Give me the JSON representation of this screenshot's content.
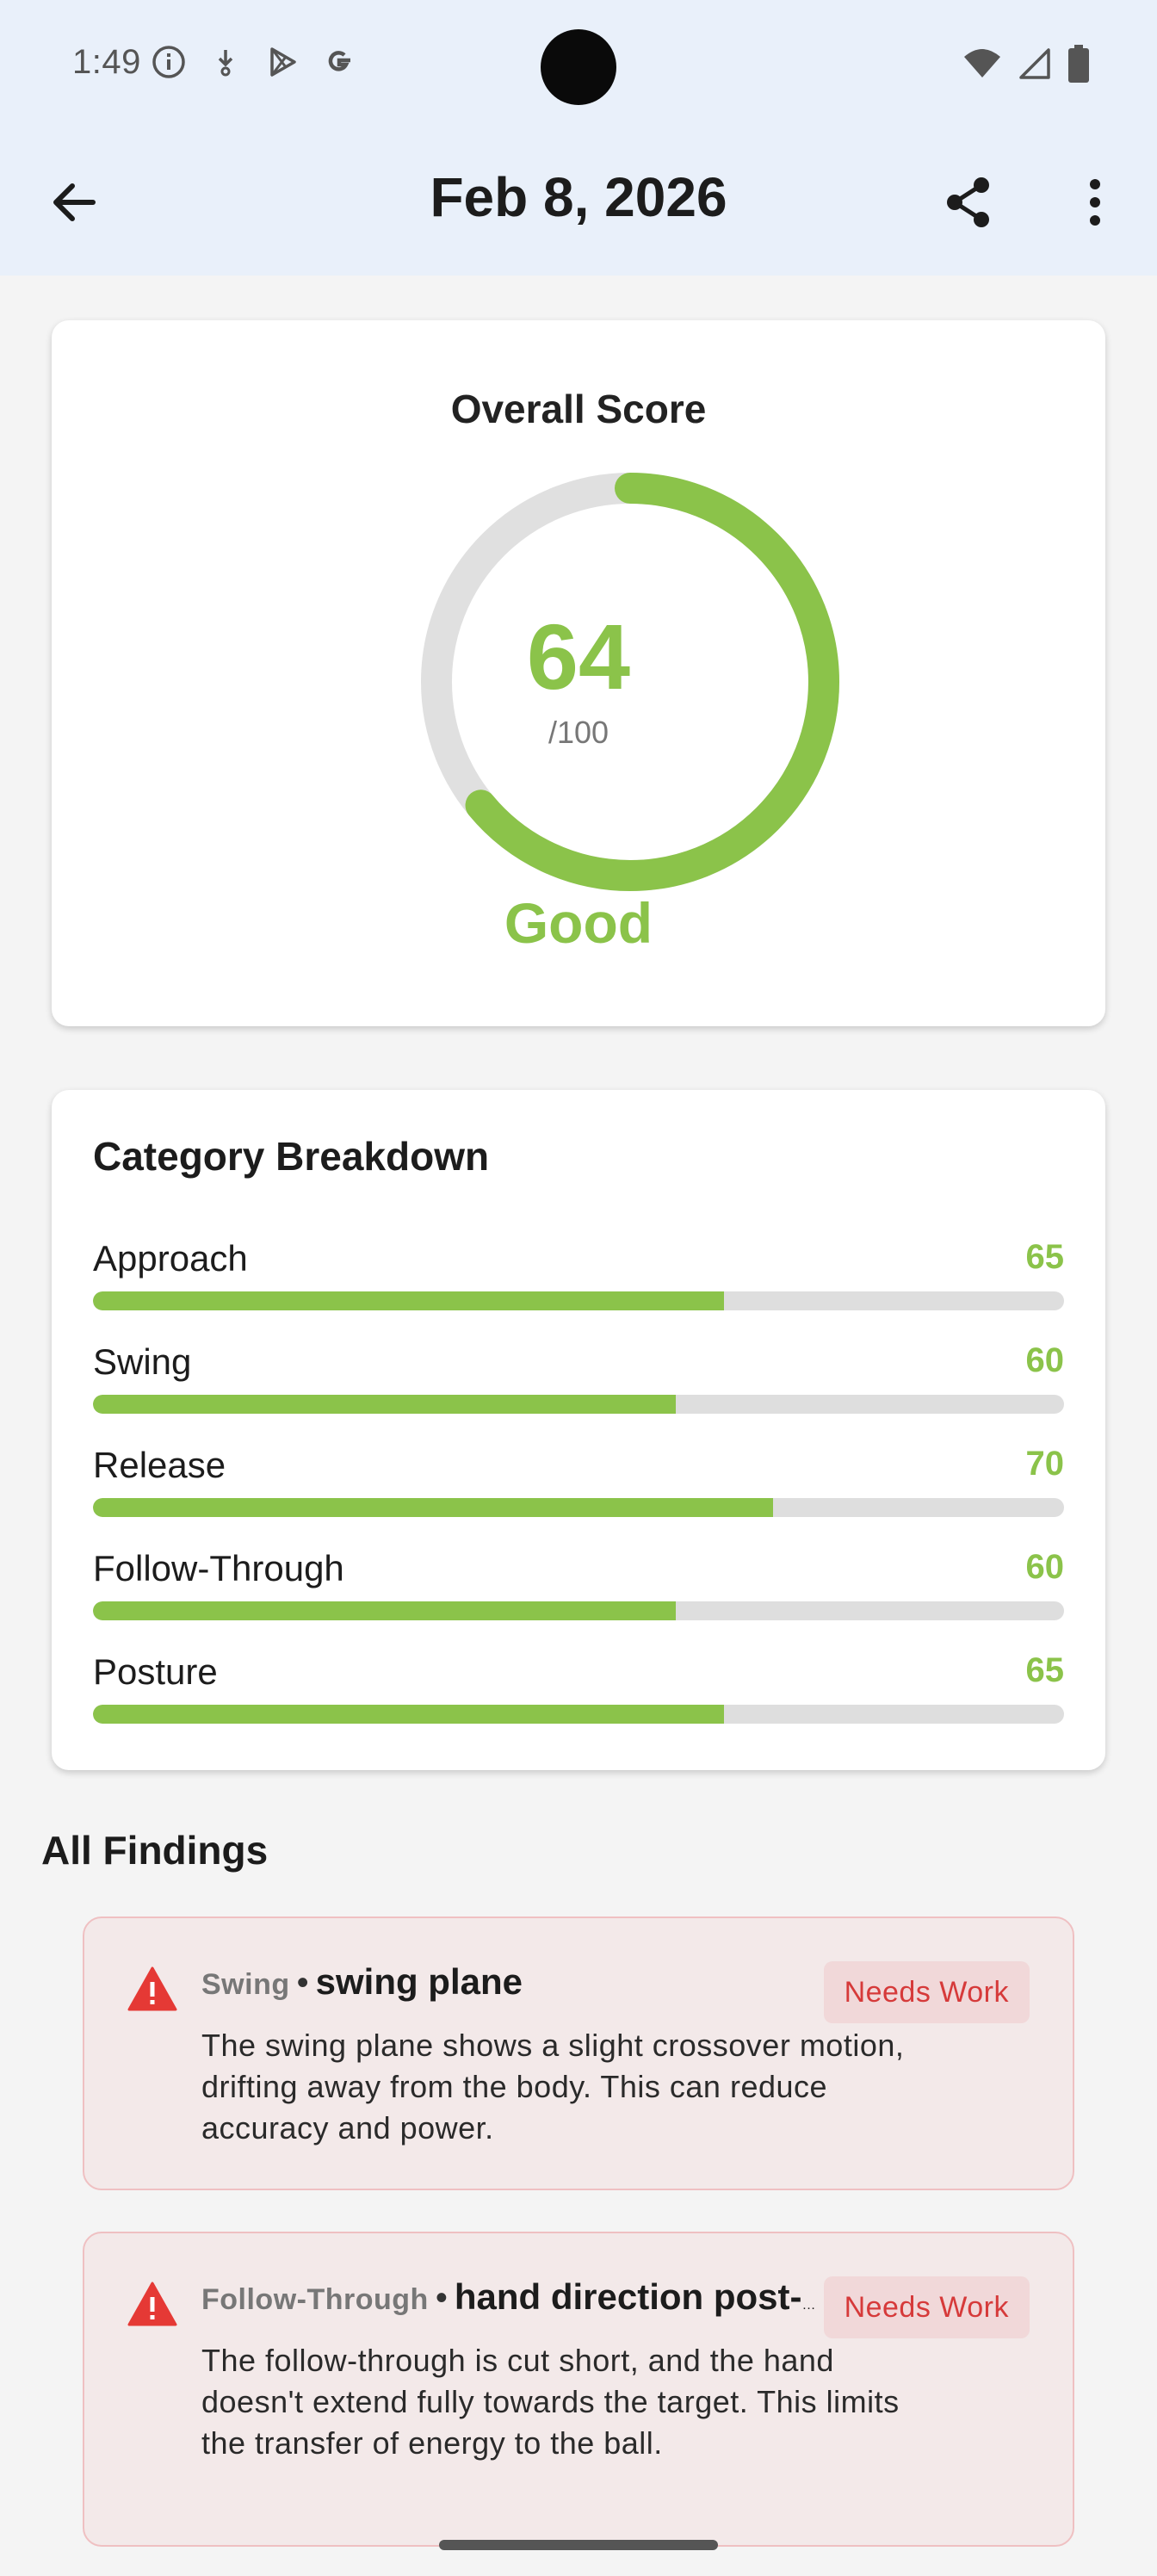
{
  "status_bar": {
    "time": "1:49",
    "left_icons": [
      "info-icon",
      "download-icon",
      "play-store-icon",
      "google-icon"
    ],
    "right_icons": [
      "wifi-icon",
      "signal-icon",
      "battery-icon"
    ]
  },
  "app_bar": {
    "title": "Feb 8, 2026"
  },
  "overall": {
    "label": "Overall Score",
    "score": "64",
    "max": "/100",
    "rating": "Good",
    "progress_fraction": 0.64,
    "accent_color": "#8bc34a"
  },
  "breakdown": {
    "title": "Category Breakdown",
    "categories": [
      {
        "name": "Approach",
        "score": "65",
        "value": 65
      },
      {
        "name": "Swing",
        "score": "60",
        "value": 60
      },
      {
        "name": "Release",
        "score": "70",
        "value": 70
      },
      {
        "name": "Follow-Through",
        "score": "60",
        "value": 60
      },
      {
        "name": "Posture",
        "score": "65",
        "value": 65
      }
    ]
  },
  "findings": {
    "title": "All Findings",
    "items": [
      {
        "category": "Swing",
        "separator": "•",
        "name": "swing plane",
        "badge": "Needs Work",
        "description": "The swing plane shows a slight crossover motion, drifting away from the body. This can reduce accuracy and power."
      },
      {
        "category": "Follow-Through",
        "separator": "•",
        "name": "hand direction post-r...",
        "badge": "Needs Work",
        "description": "The follow-through is cut short, and the hand doesn't extend fully towards the target. This limits the transfer of energy to the ball."
      }
    ],
    "badge_color": "#d63a3a"
  }
}
